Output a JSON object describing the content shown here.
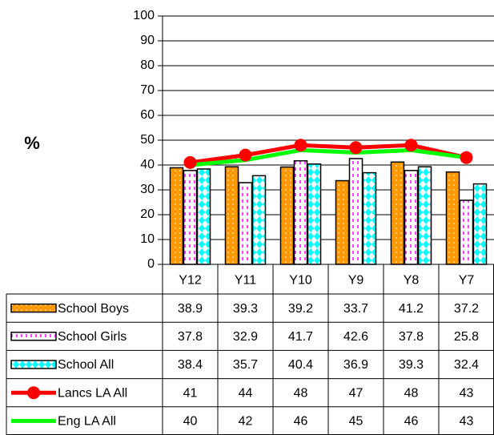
{
  "chart_data": {
    "type": "bar",
    "y_label": "%",
    "categories": [
      "Y12",
      "Y11",
      "Y10",
      "Y9",
      "Y8",
      "Y7"
    ],
    "ylim": [
      0,
      100
    ],
    "yticks": [
      0,
      10,
      20,
      30,
      40,
      50,
      60,
      70,
      80,
      90,
      100
    ],
    "grid": true,
    "series": [
      {
        "name": "School Boys",
        "type": "bar",
        "color": "#ff9900",
        "values": [
          38.9,
          39.3,
          39.2,
          33.7,
          41.2,
          37.2
        ]
      },
      {
        "name": "School Girls",
        "type": "bar",
        "color": "#ff00ff",
        "values": [
          37.8,
          32.9,
          41.7,
          42.6,
          37.8,
          25.8
        ]
      },
      {
        "name": "School All",
        "type": "bar",
        "color": "#00ffff",
        "values": [
          38.4,
          35.7,
          40.4,
          36.9,
          39.3,
          32.4
        ]
      },
      {
        "name": "Lancs LA All",
        "type": "line",
        "color": "#ff0000",
        "markers": true,
        "values": [
          41,
          44,
          48,
          47,
          48,
          43
        ]
      },
      {
        "name": "Eng LA All",
        "type": "line",
        "color": "#00ff00",
        "markers": false,
        "values": [
          40,
          42,
          46,
          45,
          46,
          43
        ]
      }
    ]
  }
}
